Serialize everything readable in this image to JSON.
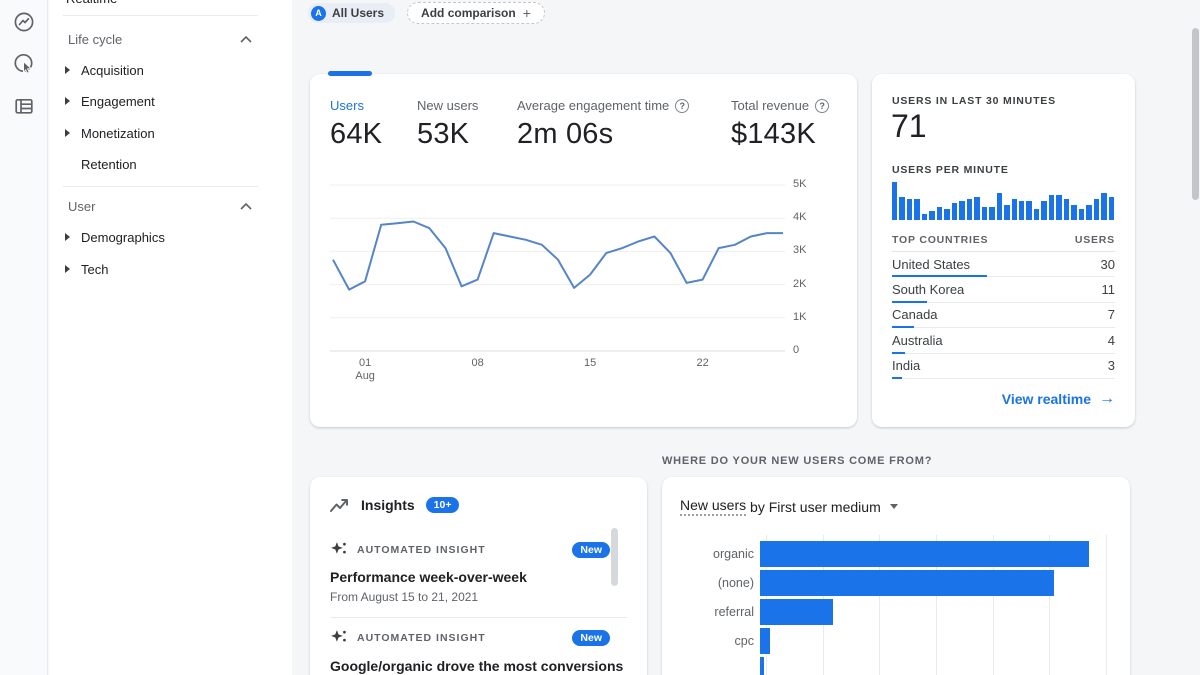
{
  "colors": {
    "accent": "#1a73e8",
    "line": "#5585c8",
    "bar": "#1a73e8",
    "text_dark": "#202124",
    "text_gray": "#5f6368"
  },
  "glyphs": {
    "arrow_right": "→",
    "plus": "+",
    "help": "?"
  },
  "rail": {
    "icons": [
      "home",
      "explore",
      "library"
    ]
  },
  "sidebar": {
    "realtime_label": "Realtime",
    "lifecycle_header": "Life cycle",
    "lifecycle_items": [
      {
        "label": "Acquisition",
        "expandable": true
      },
      {
        "label": "Engagement",
        "expandable": true
      },
      {
        "label": "Monetization",
        "expandable": true
      },
      {
        "label": "Retention",
        "expandable": false
      }
    ],
    "user_header": "User",
    "user_items": [
      {
        "label": "Demographics",
        "expandable": true
      },
      {
        "label": "Tech",
        "expandable": true
      }
    ]
  },
  "header": {
    "audience_avatar": "A",
    "audience_chip": "All Users",
    "add_comparison": "Add comparison"
  },
  "overview_card": {
    "metrics": [
      {
        "label": "Users",
        "value": "64K",
        "highlight": true,
        "help": false
      },
      {
        "label": "New users",
        "value": "53K",
        "highlight": false,
        "help": false
      },
      {
        "label": "Average engagement time",
        "value": "2m 06s",
        "highlight": false,
        "help": true
      },
      {
        "label": "Total revenue",
        "value": "$143K",
        "highlight": false,
        "help": true
      }
    ]
  },
  "realtime_card": {
    "title": "USERS IN LAST 30 MINUTES",
    "value": "71",
    "per_minute_label": "USERS PER MINUTE",
    "countries_header_left": "TOP COUNTRIES",
    "countries_header_right": "USERS",
    "countries": [
      {
        "name": "United States",
        "users": 30
      },
      {
        "name": "South Korea",
        "users": 11
      },
      {
        "name": "Canada",
        "users": 7
      },
      {
        "name": "Australia",
        "users": 4
      },
      {
        "name": "India",
        "users": 3
      }
    ],
    "link": "View realtime"
  },
  "insights_card": {
    "title": "Insights",
    "badge": "10+",
    "items": [
      {
        "kicker": "AUTOMATED INSIGHT",
        "badge": "New",
        "title": "Performance week-over-week",
        "subtitle": "From August 15 to 21, 2021"
      },
      {
        "kicker": "AUTOMATED INSIGHT",
        "badge": "New",
        "title": "Google/organic drove the most conversions"
      }
    ]
  },
  "acquisition_section": {
    "header": "WHERE DO YOUR NEW USERS COME FROM?",
    "title_metric": "New users",
    "title_rest": "by First user medium"
  },
  "chart_data": [
    {
      "id": "users_trend",
      "type": "line",
      "title": "Users (overview trend)",
      "x": [
        "Jul 30",
        "Jul 31",
        "Aug 1",
        "Aug 2",
        "Aug 3",
        "Aug 4",
        "Aug 5",
        "Aug 6",
        "Aug 7",
        "Aug 8",
        "Aug 9",
        "Aug 10",
        "Aug 11",
        "Aug 12",
        "Aug 13",
        "Aug 14",
        "Aug 15",
        "Aug 16",
        "Aug 17",
        "Aug 18",
        "Aug 19",
        "Aug 20",
        "Aug 21",
        "Aug 22",
        "Aug 23",
        "Aug 24",
        "Aug 25",
        "Aug 26",
        "Aug 27"
      ],
      "values": [
        2750,
        1850,
        2100,
        3800,
        3850,
        3900,
        3700,
        3100,
        1950,
        2150,
        3550,
        3450,
        3350,
        3200,
        2750,
        1900,
        2300,
        2950,
        3100,
        3300,
        3450,
        2950,
        2050,
        2150,
        3100,
        3200,
        3450,
        3550,
        3550
      ],
      "ylim": [
        0,
        5000
      ],
      "y_tick_labels": [
        "5K",
        "4K",
        "3K",
        "2K",
        "1K",
        "0"
      ],
      "x_ticks": [
        {
          "label": "01",
          "sublabel": "Aug",
          "i": 2
        },
        {
          "label": "08",
          "sublabel": "",
          "i": 9
        },
        {
          "label": "15",
          "sublabel": "",
          "i": 16
        },
        {
          "label": "22",
          "sublabel": "",
          "i": 23
        }
      ],
      "grid": true,
      "legend": "none",
      "line_color": "#5585c8"
    },
    {
      "id": "users_per_minute",
      "type": "bar",
      "title": "Users per minute (last 30 minutes)",
      "values": [
        10,
        6,
        5.5,
        5.5,
        1.5,
        2.5,
        3.5,
        3,
        4.5,
        5,
        5.5,
        6,
        3.5,
        3.5,
        7,
        4,
        5.5,
        5,
        5,
        3,
        5,
        6.5,
        6.5,
        5.5,
        4,
        3,
        4,
        5.5,
        7,
        6
      ],
      "ylim": [
        0,
        10
      ],
      "note": "relative heights, axis unlabeled",
      "bar_color": "#1a73e8"
    },
    {
      "id": "new_users_by_first_user_medium",
      "type": "bar",
      "orientation": "horizontal",
      "title": "New users by First user medium",
      "categories": [
        "organic",
        "(none)",
        "referral",
        "cpc",
        ""
      ],
      "values_pct_of_axis": [
        95,
        85,
        21,
        3,
        1.2
      ],
      "xlim": [
        0,
        100
      ],
      "gridlines": 6,
      "note": "axis labels cut off below screenshot; values are relative bar lengths",
      "bar_color": "#1a73e8"
    }
  ]
}
